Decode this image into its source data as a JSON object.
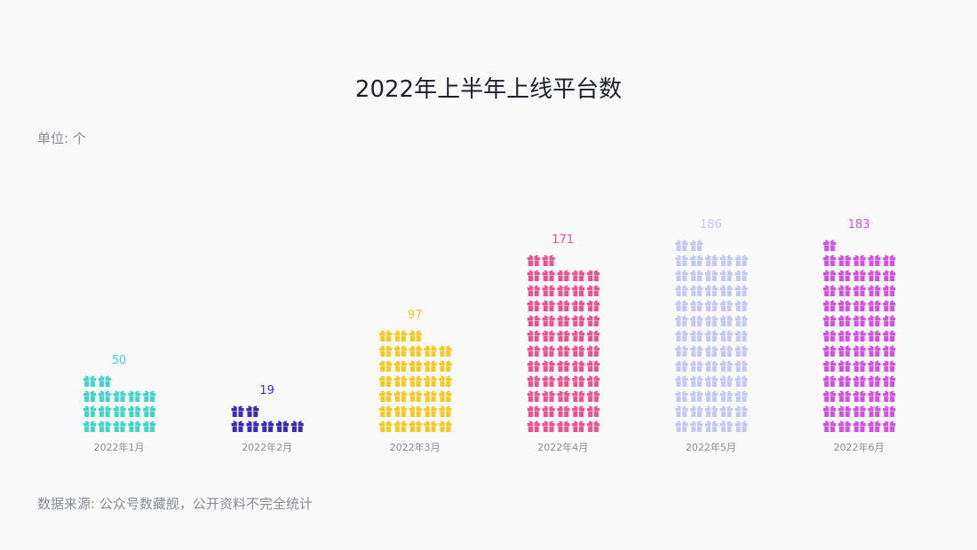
{
  "title": "2022年上半年上线平台数",
  "unit_label": "单位: 个",
  "source_label": "数据来源: 公众号数藏舰，公开资料不完全统计",
  "chart_data": {
    "type": "bar",
    "style": "pictogram",
    "icon": "gift-icon",
    "icons_per_row": 5,
    "units_per_icon": 3,
    "categories": [
      "2022年1月",
      "2022年2月",
      "2022年3月",
      "2022年4月",
      "2022年5月",
      "2022年6月"
    ],
    "values": [
      50,
      19,
      97,
      171,
      186,
      183
    ],
    "colors": [
      "#3dd6c9",
      "#3a2bbf",
      "#f7c81e",
      "#f0508c",
      "#c5c9f2",
      "#d44fe6"
    ],
    "xlabel": "",
    "ylabel": "",
    "grid": false
  }
}
